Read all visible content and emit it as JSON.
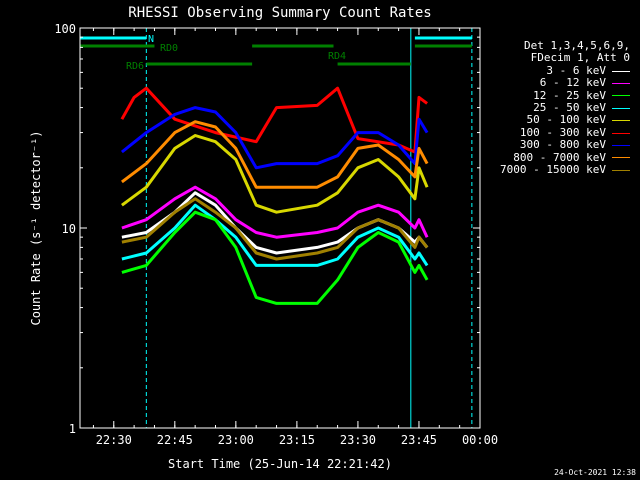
{
  "title": "RHESSI Observing Summary Count Rates",
  "colors": {
    "background": "#000000",
    "axes": "#ffffff"
  },
  "stamp": "24-Oct-2021 12:38",
  "legend": {
    "header": [
      "Det 1,3,4,5,6,9,",
      "FDecim 1, Att 0"
    ],
    "items": [
      {
        "label": "3 - 6 keV",
        "color": "#ffffff"
      },
      {
        "label": "6 - 12 keV",
        "color": "#ff00ff"
      },
      {
        "label": "12 - 25 keV",
        "color": "#00ff00"
      },
      {
        "label": "25 - 50 keV",
        "color": "#00ffff"
      },
      {
        "label": "50 - 100 keV",
        "color": "#d8d800"
      },
      {
        "label": "100 - 300 keV",
        "color": "#ff0000"
      },
      {
        "label": "300 - 800 keV",
        "color": "#0000ff"
      },
      {
        "label": "800 - 7000 keV",
        "color": "#ff8c00"
      },
      {
        "label": "7000 - 15000 keV",
        "color": "#a08000"
      }
    ]
  },
  "chart_data": {
    "type": "line",
    "title": "RHESSI Observing Summary Count Rates",
    "xlabel": "Start Time (25-Jun-14 22:21:42)",
    "ylabel": "Count Rate (s⁻¹ detector⁻¹)",
    "xlim": [
      "22:21:42",
      "00:00"
    ],
    "ylim": [
      1,
      100
    ],
    "yscale": "log",
    "x_ticks": [
      "22:30",
      "22:45",
      "23:00",
      "23:15",
      "23:30",
      "23:45",
      "00:00"
    ],
    "y_ticks": [
      "1",
      "10",
      "100"
    ],
    "legend_position": "right",
    "series": [
      {
        "name": "100 - 300 keV",
        "color": "#ff0000",
        "x": [
          "22:32",
          "22:35",
          "22:38",
          "22:45",
          "22:55",
          "23:05",
          "23:10",
          "23:20",
          "23:25",
          "23:30",
          "23:40",
          "23:44",
          "23:45",
          "23:47"
        ],
        "y": [
          35,
          45,
          50,
          35,
          30,
          27,
          40,
          41,
          50,
          28,
          26,
          24,
          45,
          42
        ]
      },
      {
        "name": "300 - 800 keV",
        "color": "#0000ff",
        "x": [
          "22:32",
          "22:38",
          "22:45",
          "22:50",
          "22:55",
          "23:00",
          "23:05",
          "23:10",
          "23:20",
          "23:25",
          "23:30",
          "23:35",
          "23:40",
          "23:44",
          "23:45",
          "23:47"
        ],
        "y": [
          24,
          30,
          37,
          40,
          38,
          30,
          20,
          21,
          21,
          23,
          30,
          30,
          26,
          21,
          35,
          30
        ]
      },
      {
        "name": "800 - 7000 keV",
        "color": "#ff8c00",
        "x": [
          "22:32",
          "22:38",
          "22:45",
          "22:50",
          "22:55",
          "23:00",
          "23:05",
          "23:10",
          "23:20",
          "23:25",
          "23:30",
          "23:35",
          "23:40",
          "23:44",
          "23:45",
          "23:47"
        ],
        "y": [
          17,
          21,
          30,
          34,
          32,
          25,
          16,
          16,
          16,
          18,
          25,
          26,
          22,
          18,
          25,
          21
        ]
      },
      {
        "name": "50 - 100 keV",
        "color": "#d8d800",
        "x": [
          "22:32",
          "22:38",
          "22:45",
          "22:50",
          "22:55",
          "23:00",
          "23:05",
          "23:10",
          "23:20",
          "23:25",
          "23:30",
          "23:35",
          "23:40",
          "23:44",
          "23:45",
          "23:47"
        ],
        "y": [
          13,
          16,
          25,
          29,
          27,
          22,
          13,
          12,
          13,
          15,
          20,
          22,
          18,
          14,
          20,
          16
        ]
      },
      {
        "name": "6 - 12 keV",
        "color": "#ff00ff",
        "x": [
          "22:32",
          "22:38",
          "22:45",
          "22:50",
          "22:55",
          "23:00",
          "23:05",
          "23:10",
          "23:20",
          "23:25",
          "23:30",
          "23:35",
          "23:40",
          "23:44",
          "23:45",
          "23:47"
        ],
        "y": [
          10,
          11,
          14,
          16,
          14,
          11,
          9.5,
          9,
          9.5,
          10,
          12,
          13,
          12,
          10,
          11,
          9
        ]
      },
      {
        "name": "3 - 6 keV",
        "color": "#ffffff",
        "x": [
          "22:32",
          "22:38",
          "22:45",
          "22:50",
          "22:55",
          "23:00",
          "23:05",
          "23:10",
          "23:20",
          "23:25",
          "23:30",
          "23:35",
          "23:40",
          "23:44",
          "23:45",
          "23:47"
        ],
        "y": [
          9,
          9.5,
          12,
          15,
          13,
          10,
          8,
          7.5,
          8,
          8.5,
          10,
          11,
          10,
          8.5,
          9,
          8
        ]
      },
      {
        "name": "7000 - 15000 keV",
        "color": "#a08000",
        "x": [
          "22:32",
          "22:38",
          "22:45",
          "22:50",
          "22:55",
          "23:00",
          "23:05",
          "23:10",
          "23:20",
          "23:25",
          "23:30",
          "23:35",
          "23:40",
          "23:44",
          "23:45",
          "23:47"
        ],
        "y": [
          8.5,
          9,
          12,
          14,
          12,
          10,
          7.5,
          7,
          7.5,
          8,
          10,
          11,
          10,
          8,
          9,
          8
        ]
      },
      {
        "name": "25 - 50 keV",
        "color": "#00ffff",
        "x": [
          "22:32",
          "22:38",
          "22:45",
          "22:50",
          "22:55",
          "23:00",
          "23:05",
          "23:10",
          "23:20",
          "23:25",
          "23:30",
          "23:35",
          "23:40",
          "23:44",
          "23:45",
          "23:47"
        ],
        "y": [
          7,
          7.5,
          10,
          13,
          11,
          9,
          6.5,
          6.5,
          6.5,
          7,
          9,
          10,
          9,
          7,
          7.5,
          6.5
        ]
      },
      {
        "name": "12 - 25 keV",
        "color": "#00ff00",
        "x": [
          "22:32",
          "22:38",
          "22:45",
          "22:50",
          "22:55",
          "23:00",
          "23:05",
          "23:10",
          "23:20",
          "23:25",
          "23:30",
          "23:35",
          "23:40",
          "23:44",
          "23:45",
          "23:47"
        ],
        "y": [
          6,
          6.5,
          9.5,
          12,
          11,
          8,
          4.5,
          4.2,
          4.2,
          5.5,
          8,
          9.5,
          8.5,
          6,
          6.5,
          5.5
        ]
      }
    ],
    "annotations": {
      "flags": [
        {
          "label": "N",
          "color": "#00ffff",
          "segments": [
            [
              "22:21:42",
              "22:38"
            ],
            [
              "23:44",
              "23:58"
            ]
          ]
        },
        {
          "label": "RD0",
          "color": "#008000",
          "segments": [
            [
              "22:21:42",
              "22:40"
            ],
            [
              "23:04",
              "23:24"
            ],
            [
              "23:44",
              "23:58"
            ]
          ]
        },
        {
          "label": "RD4",
          "color": "#008000",
          "segments": [
            [
              "23:25",
              "23:43"
            ]
          ]
        },
        {
          "label": "RD6",
          "color": "#008000",
          "segments": [
            [
              "22:38",
              "23:04"
            ]
          ]
        }
      ],
      "vlines": [
        {
          "x": "22:38",
          "style": "dashed",
          "color": "#00ffff"
        },
        {
          "x": "23:43",
          "style": "solid",
          "color": "#00ffff"
        },
        {
          "x": "23:58",
          "style": "dashed",
          "color": "#00ffff"
        }
      ]
    }
  }
}
